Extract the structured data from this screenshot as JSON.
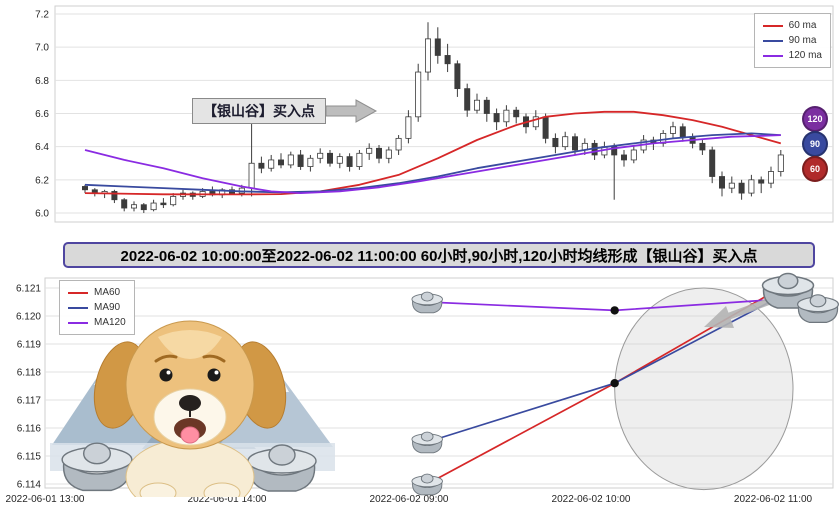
{
  "banner": {
    "text": "2022-06-02 10:00:00至2022-06-02 11:00:00 60小时,90小时,120小时均线形成【银山谷】买入点"
  },
  "annotation": {
    "text": "【银山谷】买入点"
  },
  "ma_badges": [
    {
      "label": "120",
      "color": "#7b2fa0"
    },
    {
      "label": "90",
      "color": "#394a9f"
    },
    {
      "label": "60",
      "color": "#b02a2a"
    }
  ],
  "legend_top": {
    "items": [
      {
        "label": "60 ma",
        "color": "#d62728"
      },
      {
        "label": "90 ma",
        "color": "#394a9f"
      },
      {
        "label": "120 ma",
        "color": "#8a2be2"
      }
    ]
  },
  "legend_bottom": {
    "items": [
      {
        "label": "MA60",
        "color": "#d62728"
      },
      {
        "label": "MA90",
        "color": "#394a9f"
      },
      {
        "label": "MA120",
        "color": "#8a2be2"
      }
    ]
  },
  "chart_data": [
    {
      "type": "candlestick",
      "title": "",
      "ylim": [
        6.0,
        7.2
      ],
      "grid": "horizontal",
      "legend_position": "upper right",
      "yticks": [
        [
          6.0,
          "6.0"
        ],
        [
          6.2,
          "6.2"
        ],
        [
          6.4,
          "6.4"
        ],
        [
          6.6,
          "6.6"
        ],
        [
          6.8,
          "6.8"
        ],
        [
          7.0,
          "7.0"
        ],
        [
          7.2,
          "7.2"
        ]
      ],
      "candles_ohlc": [
        [
          6.16,
          6.17,
          6.12,
          6.14
        ],
        [
          6.14,
          6.15,
          6.1,
          6.12
        ],
        [
          6.12,
          6.14,
          6.09,
          6.13
        ],
        [
          6.13,
          6.14,
          6.06,
          6.08
        ],
        [
          6.08,
          6.09,
          6.01,
          6.03
        ],
        [
          6.03,
          6.07,
          6.01,
          6.05
        ],
        [
          6.05,
          6.06,
          6.0,
          6.02
        ],
        [
          6.02,
          6.08,
          6.01,
          6.06
        ],
        [
          6.06,
          6.09,
          6.03,
          6.05
        ],
        [
          6.05,
          6.12,
          6.04,
          6.1
        ],
        [
          6.1,
          6.14,
          6.08,
          6.12
        ],
        [
          6.12,
          6.13,
          6.08,
          6.1
        ],
        [
          6.1,
          6.15,
          6.09,
          6.13
        ],
        [
          6.13,
          6.16,
          6.1,
          6.11
        ],
        [
          6.11,
          6.15,
          6.09,
          6.14
        ],
        [
          6.14,
          6.16,
          6.11,
          6.12
        ],
        [
          6.12,
          6.17,
          6.1,
          6.15
        ],
        [
          6.15,
          6.55,
          6.1,
          6.3
        ],
        [
          6.3,
          6.34,
          6.24,
          6.27
        ],
        [
          6.27,
          6.35,
          6.25,
          6.32
        ],
        [
          6.32,
          6.36,
          6.27,
          6.29
        ],
        [
          6.29,
          6.37,
          6.27,
          6.35
        ],
        [
          6.35,
          6.38,
          6.26,
          6.28
        ],
        [
          6.28,
          6.35,
          6.25,
          6.33
        ],
        [
          6.33,
          6.39,
          6.3,
          6.36
        ],
        [
          6.36,
          6.38,
          6.28,
          6.3
        ],
        [
          6.3,
          6.36,
          6.27,
          6.34
        ],
        [
          6.34,
          6.36,
          6.25,
          6.28
        ],
        [
          6.28,
          6.38,
          6.26,
          6.36
        ],
        [
          6.36,
          6.42,
          6.32,
          6.39
        ],
        [
          6.39,
          6.41,
          6.3,
          6.33
        ],
        [
          6.33,
          6.4,
          6.3,
          6.38
        ],
        [
          6.38,
          6.47,
          6.35,
          6.45
        ],
        [
          6.45,
          6.62,
          6.42,
          6.58
        ],
        [
          6.58,
          6.9,
          6.55,
          6.85
        ],
        [
          6.85,
          7.15,
          6.8,
          7.05
        ],
        [
          7.05,
          7.12,
          6.9,
          6.95
        ],
        [
          6.95,
          7.02,
          6.85,
          6.9
        ],
        [
          6.9,
          6.92,
          6.7,
          6.75
        ],
        [
          6.75,
          6.78,
          6.58,
          6.62
        ],
        [
          6.62,
          6.72,
          6.6,
          6.68
        ],
        [
          6.68,
          6.7,
          6.55,
          6.6
        ],
        [
          6.6,
          6.63,
          6.5,
          6.55
        ],
        [
          6.55,
          6.65,
          6.52,
          6.62
        ],
        [
          6.62,
          6.64,
          6.54,
          6.58
        ],
        [
          6.58,
          6.6,
          6.48,
          6.52
        ],
        [
          6.52,
          6.62,
          6.5,
          6.58
        ],
        [
          6.58,
          6.6,
          6.42,
          6.45
        ],
        [
          6.45,
          6.48,
          6.36,
          6.4
        ],
        [
          6.4,
          6.49,
          6.38,
          6.46
        ],
        [
          6.46,
          6.48,
          6.35,
          6.38
        ],
        [
          6.38,
          6.45,
          6.35,
          6.42
        ],
        [
          6.42,
          6.44,
          6.32,
          6.35
        ],
        [
          6.35,
          6.43,
          6.33,
          6.4
        ],
        [
          6.4,
          6.42,
          6.08,
          6.35
        ],
        [
          6.35,
          6.38,
          6.28,
          6.32
        ],
        [
          6.32,
          6.41,
          6.3,
          6.38
        ],
        [
          6.38,
          6.47,
          6.36,
          6.44
        ],
        [
          6.44,
          6.46,
          6.38,
          6.42
        ],
        [
          6.42,
          6.5,
          6.4,
          6.48
        ],
        [
          6.48,
          6.55,
          6.45,
          6.52
        ],
        [
          6.52,
          6.54,
          6.43,
          6.46
        ],
        [
          6.46,
          6.48,
          6.39,
          6.42
        ],
        [
          6.42,
          6.44,
          6.35,
          6.38
        ],
        [
          6.38,
          6.4,
          6.18,
          6.22
        ],
        [
          6.22,
          6.25,
          6.1,
          6.15
        ],
        [
          6.15,
          6.22,
          6.12,
          6.18
        ],
        [
          6.18,
          6.2,
          6.08,
          6.12
        ],
        [
          6.12,
          6.23,
          6.1,
          6.2
        ],
        [
          6.2,
          6.22,
          6.12,
          6.18
        ],
        [
          6.18,
          6.28,
          6.15,
          6.25
        ],
        [
          6.25,
          6.38,
          6.22,
          6.35
        ]
      ],
      "series": [
        {
          "name": "60 ma",
          "color": "#d62728",
          "points": [
            [
              0,
              6.12
            ],
            [
              8,
              6.113
            ],
            [
              16,
              6.112
            ],
            [
              20,
              6.114
            ],
            [
              24,
              6.13
            ],
            [
              28,
              6.17
            ],
            [
              32,
              6.23
            ],
            [
              36,
              6.33
            ],
            [
              40,
              6.44
            ],
            [
              44,
              6.53
            ],
            [
              47,
              6.58
            ],
            [
              50,
              6.6
            ],
            [
              53,
              6.61
            ],
            [
              56,
              6.61
            ],
            [
              59,
              6.59
            ],
            [
              62,
              6.56
            ],
            [
              65,
              6.52
            ],
            [
              68,
              6.47
            ],
            [
              71,
              6.42
            ]
          ]
        },
        {
          "name": "90 ma",
          "color": "#394a9f",
          "points": [
            [
              0,
              6.17
            ],
            [
              4,
              6.16
            ],
            [
              8,
              6.15
            ],
            [
              12,
              6.14
            ],
            [
              16,
              6.13
            ],
            [
              20,
              6.125
            ],
            [
              24,
              6.13
            ],
            [
              28,
              6.15
            ],
            [
              32,
              6.18
            ],
            [
              36,
              6.22
            ],
            [
              40,
              6.27
            ],
            [
              44,
              6.31
            ],
            [
              48,
              6.35
            ],
            [
              52,
              6.39
            ],
            [
              56,
              6.42
            ],
            [
              60,
              6.45
            ],
            [
              64,
              6.47
            ],
            [
              68,
              6.48
            ],
            [
              71,
              6.47
            ]
          ]
        },
        {
          "name": "120 ma",
          "color": "#8a2be2",
          "points": [
            [
              0,
              6.38
            ],
            [
              4,
              6.32
            ],
            [
              8,
              6.27
            ],
            [
              12,
              6.21
            ],
            [
              16,
              6.16
            ],
            [
              19,
              6.13
            ],
            [
              22,
              6.12
            ],
            [
              26,
              6.13
            ],
            [
              30,
              6.155
            ],
            [
              34,
              6.19
            ],
            [
              38,
              6.23
            ],
            [
              42,
              6.27
            ],
            [
              46,
              6.31
            ],
            [
              50,
              6.35
            ],
            [
              54,
              6.39
            ],
            [
              58,
              6.42
            ],
            [
              62,
              6.44
            ],
            [
              66,
              6.46
            ],
            [
              69,
              6.465
            ],
            [
              71,
              6.47
            ]
          ]
        }
      ]
    },
    {
      "type": "line",
      "ylim": [
        6.114,
        6.121
      ],
      "grid": "horizontal",
      "legend_position": "upper left",
      "yticks": [
        [
          6.114,
          "6.114"
        ],
        [
          6.115,
          "6.115"
        ],
        [
          6.116,
          "6.116"
        ],
        [
          6.117,
          "6.117"
        ],
        [
          6.118,
          "6.118"
        ],
        [
          6.119,
          "6.119"
        ],
        [
          6.12,
          "6.120"
        ],
        [
          6.121,
          "6.121"
        ]
      ],
      "xticks": [
        [
          0,
          "2022-06-01 13:00"
        ],
        [
          1,
          "2022-06-01 14:00"
        ],
        [
          2,
          "2022-06-02 09:00"
        ],
        [
          3,
          "2022-06-02 10:00"
        ],
        [
          4,
          "2022-06-02 11:00"
        ]
      ],
      "series": [
        {
          "name": "MA60",
          "color": "#d62728",
          "points": [
            [
              2.1,
              6.114
            ],
            [
              3.13,
              6.1176
            ],
            [
              4.04,
              6.121
            ]
          ]
        },
        {
          "name": "MA90",
          "color": "#394a9f",
          "points": [
            [
              2.1,
              6.1155
            ],
            [
              3.13,
              6.1176
            ],
            [
              4.04,
              6.1207
            ]
          ]
        },
        {
          "name": "MA120",
          "color": "#8a2be2",
          "points": [
            [
              2.1,
              6.1205
            ],
            [
              3.13,
              6.1202
            ],
            [
              4.04,
              6.1206
            ]
          ]
        }
      ],
      "cross_markers": [
        [
          3.13,
          6.1202
        ],
        [
          3.13,
          6.1176
        ]
      ],
      "ingot_markers": [
        [
          2.1,
          6.1205
        ],
        [
          2.1,
          6.1155
        ],
        [
          2.1,
          6.114
        ]
      ],
      "highlight_ellipse": {
        "cx_x": 3.62,
        "cy_value": 6.1174,
        "rx_x": 0.49,
        "ry_value": 0.0036
      }
    }
  ]
}
